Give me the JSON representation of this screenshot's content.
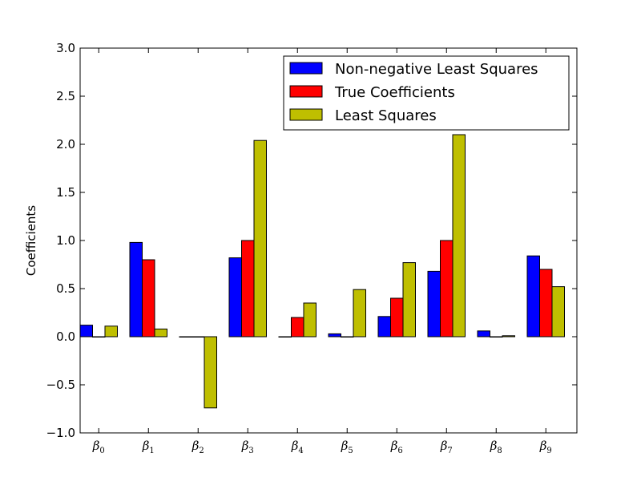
{
  "chart_data": {
    "type": "bar",
    "ylabel": "Coefficients",
    "ylim": [
      -1.0,
      3.0
    ],
    "yticks": [
      "−1.0",
      "−0.5",
      "0.0",
      "0.5",
      "1.0",
      "1.5",
      "2.0",
      "2.5",
      "3.0"
    ],
    "ytick_values": [
      -1.0,
      -0.5,
      0.0,
      0.5,
      1.0,
      1.5,
      2.0,
      2.5,
      3.0
    ],
    "categories": [
      "β",
      "β",
      "β",
      "β",
      "β",
      "β",
      "β",
      "β",
      "β",
      "β"
    ],
    "category_subscripts": [
      "0",
      "1",
      "2",
      "3",
      "4",
      "5",
      "6",
      "7",
      "8",
      "9"
    ],
    "legend_position": "upper right",
    "series": [
      {
        "name": "Non-negative Least Squares",
        "color": "#0000ff",
        "values": [
          0.12,
          0.98,
          0.0,
          0.82,
          0.0,
          0.03,
          0.21,
          0.68,
          0.06,
          0.84
        ]
      },
      {
        "name": "True Coefficients",
        "color": "#ff0000",
        "values": [
          0.0,
          0.8,
          0.0,
          1.0,
          0.2,
          0.0,
          0.4,
          1.0,
          0.0,
          0.7
        ]
      },
      {
        "name": "Least Squares",
        "color": "#bfbf00",
        "values": [
          0.11,
          0.08,
          -0.74,
          2.04,
          0.35,
          0.49,
          0.77,
          2.1,
          0.01,
          0.52
        ]
      }
    ]
  }
}
